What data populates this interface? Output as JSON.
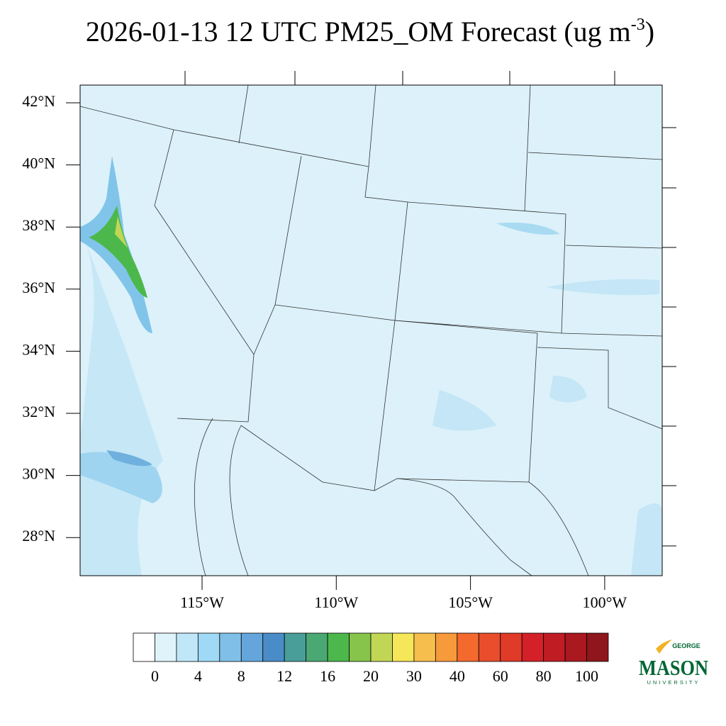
{
  "title": {
    "text": "2026-01-13 12 UTC PM25_OM Forecast (ug m",
    "superscript": "-3",
    "close": ")"
  },
  "map": {
    "lat_labels": [
      "42°N",
      "40°N",
      "38°N",
      "36°N",
      "34°N",
      "32°N",
      "30°N",
      "28°N"
    ],
    "lon_labels": [
      "115°W",
      "110°W",
      "105°W",
      "100°W"
    ]
  },
  "colorbar": {
    "colors": [
      "#ffffff",
      "#dff3fb",
      "#bfe7f7",
      "#9fd9f5",
      "#80c0e8",
      "#64a6dc",
      "#4a8cc8",
      "#4a9e9a",
      "#4aa872",
      "#4cb84c",
      "#86c44c",
      "#c2d656",
      "#f6e65a",
      "#f6be4c",
      "#f69a3c",
      "#f46a2e",
      "#e84e2c",
      "#e03a28",
      "#d42028",
      "#c01c24",
      "#aa1820",
      "#8e161c"
    ],
    "ticks": [
      0,
      4,
      8,
      12,
      16,
      20,
      30,
      40,
      60,
      80,
      100
    ]
  },
  "logo": {
    "top": "GEORGE",
    "main": "MASON",
    "bottom": "UNIVERSITY"
  }
}
